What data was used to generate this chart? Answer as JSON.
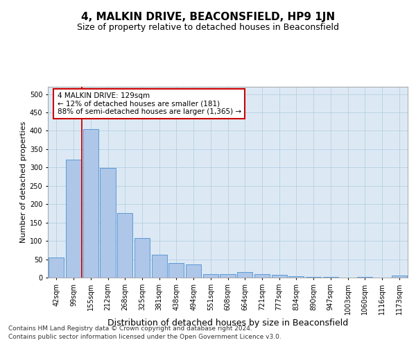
{
  "title": "4, MALKIN DRIVE, BEACONSFIELD, HP9 1JN",
  "subtitle": "Size of property relative to detached houses in Beaconsfield",
  "xlabel": "Distribution of detached houses by size in Beaconsfield",
  "ylabel": "Number of detached properties",
  "footnote1": "Contains HM Land Registry data © Crown copyright and database right 2024.",
  "footnote2": "Contains public sector information licensed under the Open Government Licence v3.0.",
  "categories": [
    "42sqm",
    "99sqm",
    "155sqm",
    "212sqm",
    "268sqm",
    "325sqm",
    "381sqm",
    "438sqm",
    "494sqm",
    "551sqm",
    "608sqm",
    "664sqm",
    "721sqm",
    "777sqm",
    "834sqm",
    "890sqm",
    "947sqm",
    "1003sqm",
    "1060sqm",
    "1116sqm",
    "1173sqm"
  ],
  "values": [
    55,
    322,
    404,
    298,
    175,
    107,
    62,
    40,
    35,
    10,
    10,
    15,
    10,
    7,
    3,
    2,
    2,
    0,
    2,
    0,
    5
  ],
  "bar_color": "#aec6e8",
  "bar_edge_color": "#5b9bd5",
  "red_line_x": 1.5,
  "annotation_text": "4 MALKIN DRIVE: 129sqm\n← 12% of detached houses are smaller (181)\n88% of semi-detached houses are larger (1,365) →",
  "annotation_box_color": "#ffffff",
  "annotation_box_edge": "#cc0000",
  "ylim": [
    0,
    520
  ],
  "yticks": [
    0,
    50,
    100,
    150,
    200,
    250,
    300,
    350,
    400,
    450,
    500
  ],
  "background_color": "#ffffff",
  "plot_bg_color": "#dce9f5",
  "grid_color": "#b8cfe0",
  "title_fontsize": 11,
  "subtitle_fontsize": 9,
  "xlabel_fontsize": 9,
  "ylabel_fontsize": 8,
  "tick_fontsize": 7,
  "annotation_fontsize": 7.5
}
